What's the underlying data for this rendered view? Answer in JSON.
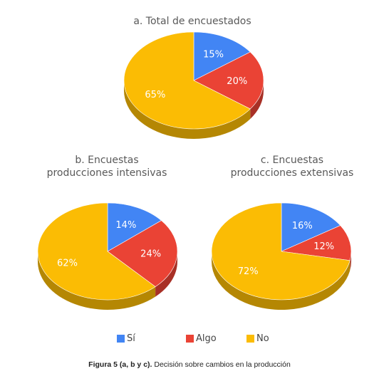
{
  "colors": {
    "si": "#4285F4",
    "algo": "#EA4335",
    "no": "#FBBC04"
  },
  "legend": [
    {
      "label": "Sí",
      "color": "#4285F4"
    },
    {
      "label": "Algo",
      "color": "#EA4335"
    },
    {
      "label": "No",
      "color": "#FBBC04"
    }
  ],
  "chart_data": [
    {
      "type": "pie",
      "title": "a. Total de encuestados",
      "title_lines": [
        "a. Total de encuestados"
      ],
      "categories": [
        "Sí",
        "Algo",
        "No"
      ],
      "values": [
        15,
        20,
        65
      ],
      "labels": [
        "15%",
        "20%",
        "65%"
      ]
    },
    {
      "type": "pie",
      "title": "b. Encuestas producciones intensivas",
      "title_lines": [
        "b. Encuestas",
        "producciones intensivas"
      ],
      "categories": [
        "Sí",
        "Algo",
        "No"
      ],
      "values": [
        14,
        24,
        62
      ],
      "labels": [
        "14%",
        "24%",
        "62%"
      ]
    },
    {
      "type": "pie",
      "title": "c. Encuestas producciones extensivas",
      "title_lines": [
        "c. Encuestas",
        "producciones extensivas"
      ],
      "categories": [
        "Sí",
        "Algo",
        "No"
      ],
      "values": [
        16,
        12,
        72
      ],
      "labels": [
        "16%",
        "12%",
        "72%"
      ]
    }
  ],
  "caption": {
    "bold": "Figura 5 (a, b y c).",
    "text": " Decisión sobre cambios en la producción"
  }
}
